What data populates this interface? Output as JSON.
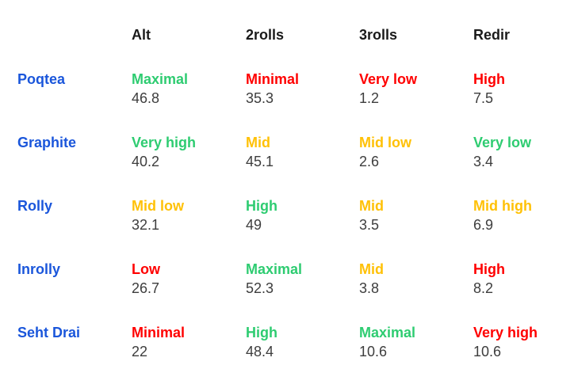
{
  "colors": {
    "row_label_blue": "#1a56db",
    "status_green": "#2ecc71",
    "status_red": "#ff0000",
    "status_yellow": "#ffc107",
    "header_text": "#1a1a1a",
    "value_text": "#3d3d3d",
    "background": "#ffffff"
  },
  "chart_data": {
    "type": "table",
    "columns": [
      "Alt",
      "2rolls",
      "3rolls",
      "Redir"
    ],
    "rows": [
      {
        "label": "Poqtea",
        "cells": [
          {
            "status": "Maximal",
            "value": "46.8",
            "color": "#2ecc71"
          },
          {
            "status": "Minimal",
            "value": "35.3",
            "color": "#ff0000"
          },
          {
            "status": "Very low",
            "value": "1.2",
            "color": "#ff0000"
          },
          {
            "status": "High",
            "value": "7.5",
            "color": "#ff0000"
          }
        ]
      },
      {
        "label": "Graphite",
        "cells": [
          {
            "status": "Very high",
            "value": "40.2",
            "color": "#2ecc71"
          },
          {
            "status": "Mid",
            "value": "45.1",
            "color": "#ffc107"
          },
          {
            "status": "Mid low",
            "value": "2.6",
            "color": "#ffc107"
          },
          {
            "status": "Very low",
            "value": "3.4",
            "color": "#2ecc71"
          }
        ]
      },
      {
        "label": "Rolly",
        "cells": [
          {
            "status": "Mid low",
            "value": "32.1",
            "color": "#ffc107"
          },
          {
            "status": "High",
            "value": "49",
            "color": "#2ecc71"
          },
          {
            "status": "Mid",
            "value": "3.5",
            "color": "#ffc107"
          },
          {
            "status": "Mid high",
            "value": "6.9",
            "color": "#ffc107"
          }
        ]
      },
      {
        "label": "Inrolly",
        "cells": [
          {
            "status": "Low",
            "value": "26.7",
            "color": "#ff0000"
          },
          {
            "status": "Maximal",
            "value": "52.3",
            "color": "#2ecc71"
          },
          {
            "status": "Mid",
            "value": "3.8",
            "color": "#ffc107"
          },
          {
            "status": "High",
            "value": "8.2",
            "color": "#ff0000"
          }
        ]
      },
      {
        "label": "Seht Drai",
        "cells": [
          {
            "status": "Minimal",
            "value": "22",
            "color": "#ff0000"
          },
          {
            "status": "High",
            "value": "48.4",
            "color": "#2ecc71"
          },
          {
            "status": "Maximal",
            "value": "10.6",
            "color": "#2ecc71"
          },
          {
            "status": "Very high",
            "value": "10.6",
            "color": "#ff0000"
          }
        ]
      }
    ]
  }
}
